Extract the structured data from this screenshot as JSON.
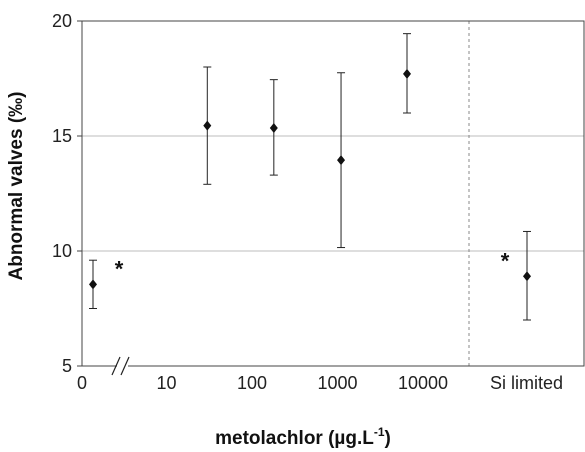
{
  "chart_data": {
    "type": "scatter",
    "xlabel": "metolachlor (µg.L",
    "xlabel_sup": "-1",
    "xlabel_close": ")",
    "ylabel": "Abnormal valves (‰)",
    "ylim": [
      5,
      20
    ],
    "yticks": [
      "5",
      "10",
      "15",
      "20"
    ],
    "xticks": [
      "0",
      "10",
      "100",
      "1000",
      "10000"
    ],
    "extra_group_label": "Si limited",
    "grid": "horizontal",
    "points": [
      {
        "x": "0",
        "y": 8.55,
        "err_low": 7.5,
        "err_high": 9.6,
        "annotation": "*"
      },
      {
        "x": "30",
        "y": 15.45,
        "err_low": 12.9,
        "err_high": 18.0
      },
      {
        "x": "180",
        "y": 15.35,
        "err_low": 13.3,
        "err_high": 17.45
      },
      {
        "x": "1100",
        "y": 13.95,
        "err_low": 10.15,
        "err_high": 17.75
      },
      {
        "x": "6500",
        "y": 17.7,
        "err_low": 16.0,
        "err_high": 19.45
      },
      {
        "x": "Si limited",
        "y": 8.9,
        "err_low": 7.0,
        "err_high": 10.85,
        "annotation": "*"
      }
    ]
  }
}
